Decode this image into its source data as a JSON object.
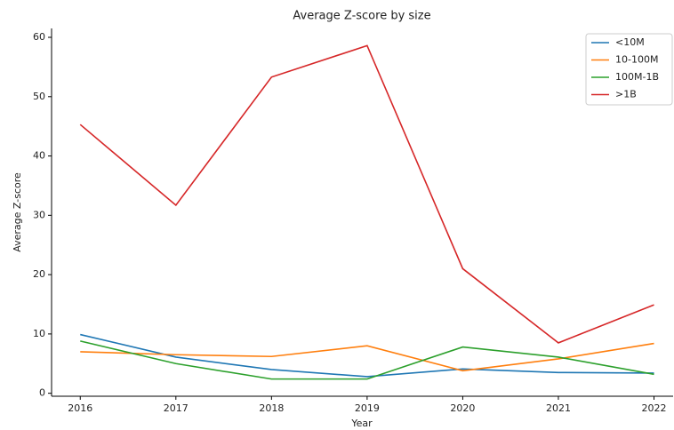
{
  "chart_data": {
    "type": "line",
    "title": "Average Z-score by size",
    "x_label": "Year",
    "y_label": "Average Z-score",
    "x": [
      2016,
      2017,
      2018,
      2019,
      2020,
      2021,
      2022
    ],
    "series": [
      {
        "name": "<10M",
        "color": "#1f77b4",
        "values": [
          9.9,
          6.1,
          4.0,
          2.8,
          4.1,
          3.5,
          3.4
        ]
      },
      {
        "name": "10-100M",
        "color": "#ff7f0e",
        "values": [
          7.0,
          6.5,
          6.2,
          8.0,
          3.8,
          5.8,
          8.4
        ]
      },
      {
        "name": "100M-1B",
        "color": "#2ca02c",
        "values": [
          8.8,
          5.0,
          2.4,
          2.4,
          7.8,
          6.1,
          3.2
        ]
      },
      {
        "name": ">1B",
        "color": "#d62728",
        "values": [
          45.3,
          31.7,
          53.3,
          58.6,
          21.0,
          8.5,
          14.9
        ]
      }
    ],
    "xlim": [
      2015.7,
      2022.2
    ],
    "xticks": [
      2016,
      2017,
      2018,
      2019,
      2020,
      2021,
      2022
    ],
    "ylim": [
      -0.5,
      61.5
    ],
    "yticks": [
      0,
      10,
      20,
      30,
      40,
      50,
      60
    ],
    "legend": "upper right"
  }
}
